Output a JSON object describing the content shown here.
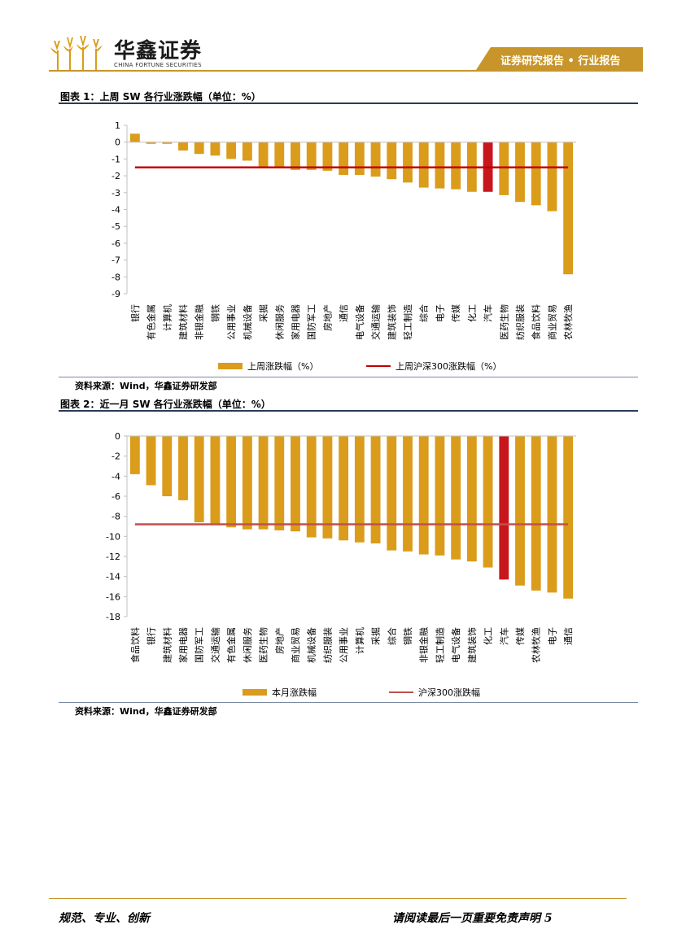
{
  "header": {
    "company_cn": "华鑫证券",
    "company_en": "CHINA FORTUNE SECURITIES",
    "report_type": "证券研究报告 • 行业报告"
  },
  "figures": [
    {
      "title": "图表 1：上周 SW 各行业涨跌幅（单位：%）",
      "source": "资料来源：Wind，华鑫证券研发部"
    },
    {
      "title": "图表 2：近一月 SW 各行业涨跌幅（单位：%）",
      "source": "资料来源：Wind，华鑫证券研发部"
    }
  ],
  "chart_data": [
    {
      "type": "bar",
      "categories": [
        "银行",
        "有色金属",
        "计算机",
        "建筑材料",
        "非银金融",
        "钢铁",
        "公用事业",
        "机械设备",
        "采掘",
        "休闲服务",
        "家用电器",
        "国防军工",
        "房地产",
        "通信",
        "电气设备",
        "交通运输",
        "建筑装饰",
        "轻工制造",
        "综合",
        "电子",
        "传媒",
        "化工",
        "汽车",
        "医药生物",
        "纺织服装",
        "食品饮料",
        "商业贸易",
        "农林牧渔"
      ],
      "values": [
        0.5,
        -0.1,
        -0.1,
        -0.5,
        -0.7,
        -0.8,
        -1.0,
        -1.1,
        -1.5,
        -1.5,
        -1.65,
        -1.65,
        -1.7,
        -1.95,
        -1.95,
        -2.05,
        -2.2,
        -2.4,
        -2.7,
        -2.75,
        -2.8,
        -2.95,
        -2.95,
        -3.15,
        -3.55,
        -3.75,
        -4.1,
        -7.85
      ],
      "highlight": "汽车",
      "reference_line": {
        "name": "上周沪深300涨跌幅（%）",
        "value": -1.5
      },
      "series_name": "上周涨跌幅（%）",
      "yticks": [
        "1",
        "0",
        "-1",
        "-2",
        "-3",
        "-4",
        "-5",
        "-6",
        "-7",
        "-8",
        "-9"
      ],
      "ylim": [
        -9,
        1
      ],
      "bar_color": "#DA9C1A",
      "highlight_color": "#C8161D",
      "line_color": "#C00000"
    },
    {
      "type": "bar",
      "categories": [
        "食品饮料",
        "银行",
        "建筑材料",
        "家用电器",
        "国防军工",
        "交通运输",
        "有色金属",
        "休闲服务",
        "医药生物",
        "房地产",
        "商业贸易",
        "机械设备",
        "纺织服装",
        "公用事业",
        "计算机",
        "采掘",
        "综合",
        "钢铁",
        "非银金融",
        "轻工制造",
        "电气设备",
        "建筑装饰",
        "化工",
        "汽车",
        "传媒",
        "农林牧渔",
        "电子",
        "通信"
      ],
      "values": [
        -3.8,
        -4.9,
        -6.0,
        -6.4,
        -8.6,
        -8.8,
        -9.1,
        -9.3,
        -9.3,
        -9.4,
        -9.5,
        -10.1,
        -10.2,
        -10.4,
        -10.6,
        -10.7,
        -11.4,
        -11.5,
        -11.8,
        -11.9,
        -12.3,
        -12.5,
        -13.1,
        -14.3,
        -14.9,
        -15.4,
        -15.6,
        -16.2
      ],
      "highlight": "汽车",
      "reference_line": {
        "name": "沪深300涨跌幅",
        "value": -8.8
      },
      "series_name": "本月涨跌幅",
      "yticks": [
        "0",
        "-2",
        "-4",
        "-6",
        "-8",
        "-10",
        "-12",
        "-14",
        "-16",
        "-18"
      ],
      "ylim": [
        -18,
        0
      ],
      "bar_color": "#DA9C1A",
      "highlight_color": "#C8161D",
      "line_color": "#C0504D"
    }
  ],
  "footer": {
    "left": "规范、专业、创新",
    "right": "请阅读最后一页重要免责声明 5"
  }
}
